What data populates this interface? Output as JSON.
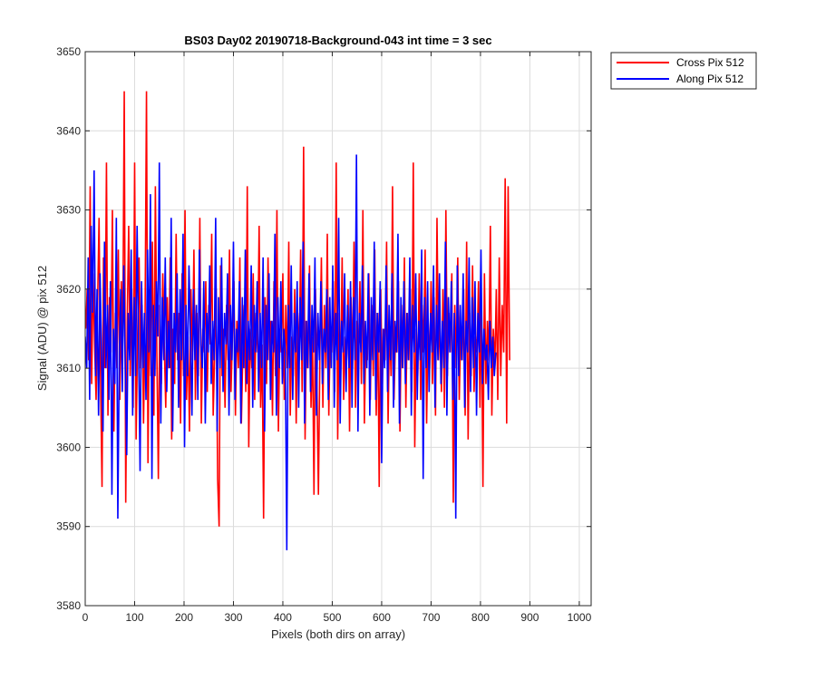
{
  "chart_data": {
    "type": "line",
    "title": "BS03 Day02 20190718-Background-043 int time = 3 sec",
    "xlabel": "Pixels (both dirs on array)",
    "ylabel": "Signal (ADU) @ pix 512",
    "xlim": [
      0,
      1024
    ],
    "ylim": [
      3580,
      3650
    ],
    "xticks": [
      0,
      100,
      200,
      300,
      400,
      500,
      600,
      700,
      800,
      900,
      1000
    ],
    "yticks": [
      3580,
      3590,
      3600,
      3610,
      3620,
      3630,
      3640,
      3650
    ],
    "grid": true,
    "legend_position": "outside-top-right",
    "series": [
      {
        "name": "Cross Pix 512",
        "color": "#ff0000",
        "x_start": 1,
        "x_step": 3,
        "values": [
          3615,
          3620,
          3611,
          3633,
          3608,
          3622,
          3613,
          3606,
          3618,
          3629,
          3609,
          3595,
          3624,
          3610,
          3636,
          3604,
          3619,
          3612,
          3630,
          3602,
          3617,
          3610,
          3625,
          3606,
          3621,
          3614,
          3645,
          3593,
          3616,
          3628,
          3609,
          3620,
          3605,
          3636,
          3601,
          3614,
          3624,
          3610,
          3618,
          3603,
          3615,
          3645,
          3598,
          3620,
          3609,
          3626,
          3604,
          3633,
          3612,
          3596,
          3618,
          3608,
          3622,
          3613,
          3605,
          3619,
          3610,
          3624,
          3601,
          3615,
          3608,
          3627,
          3611,
          3617,
          3603,
          3622,
          3609,
          3630,
          3606,
          3614,
          3602,
          3620,
          3611,
          3625,
          3606,
          3617,
          3609,
          3629,
          3603,
          3615,
          3612,
          3621,
          3607,
          3618,
          3613,
          3627,
          3604,
          3612,
          3620,
          3596,
          3590,
          3623,
          3609,
          3615,
          3605,
          3618,
          3611,
          3625,
          3607,
          3614,
          3621,
          3604,
          3616,
          3610,
          3624,
          3603,
          3612,
          3618,
          3607,
          3633,
          3600,
          3615,
          3610,
          3622,
          3606,
          3617,
          3612,
          3628,
          3605,
          3613,
          3591,
          3619,
          3608,
          3624,
          3611,
          3616,
          3604,
          3621,
          3609,
          3630,
          3602,
          3615,
          3612,
          3622,
          3606,
          3618,
          3610,
          3626,
          3604,
          3614,
          3609,
          3620,
          3603,
          3617,
          3611,
          3625,
          3607,
          3638,
          3601,
          3616,
          3610,
          3623,
          3605,
          3614,
          3594,
          3620,
          3608,
          3594,
          3612,
          3624,
          3605,
          3618,
          3610,
          3627,
          3604,
          3615,
          3612,
          3621,
          3607,
          3636,
          3601,
          3617,
          3609,
          3624,
          3606,
          3614,
          3611,
          3620,
          3602,
          3619,
          3610,
          3626,
          3605,
          3616,
          3612,
          3621,
          3608,
          3630,
          3603,
          3614,
          3611,
          3622,
          3606,
          3618,
          3609,
          3625,
          3604,
          3617,
          3595,
          3620,
          3608,
          3615,
          3611,
          3626,
          3603,
          3616,
          3609,
          3633,
          3606,
          3614,
          3612,
          3621,
          3602,
          3618,
          3610,
          3624,
          3605,
          3617,
          3611,
          3620,
          3607,
          3636,
          3600,
          3615,
          3609,
          3622,
          3606,
          3618,
          3612,
          3625,
          3603,
          3616,
          3610,
          3621,
          3608,
          3619,
          3604,
          3629,
          3611,
          3616,
          3607,
          3620,
          3605,
          3630,
          3609,
          3617,
          3612,
          3622,
          3593,
          3618,
          3610,
          3624,
          3606,
          3615,
          3611,
          3620,
          3604,
          3626,
          3601,
          3617,
          3609,
          3623,
          3607,
          3614,
          3612,
          3621,
          3605,
          3618,
          3595,
          3622,
          3608,
          3616,
          3611,
          3628,
          3604,
          3615,
          3610,
          3620,
          3606,
          3624,
          3609,
          3618,
          3612,
          3634,
          3603,
          3633,
          3611
        ]
      },
      {
        "name": "Along Pix 512",
        "color": "#0000ff",
        "x_start": 0,
        "x_step": 3,
        "values": [
          3614,
          3610,
          3624,
          3606,
          3628,
          3617,
          3635,
          3609,
          3620,
          3604,
          3622,
          3612,
          3602,
          3626,
          3610,
          3618,
          3606,
          3621,
          3594,
          3615,
          3608,
          3629,
          3591,
          3612,
          3620,
          3607,
          3623,
          3610,
          3599,
          3617,
          3611,
          3625,
          3604,
          3619,
          3609,
          3628,
          3613,
          3597,
          3621,
          3610,
          3617,
          3606,
          3625,
          3612,
          3632,
          3596,
          3618,
          3609,
          3621,
          3614,
          3636,
          3603,
          3619,
          3611,
          3624,
          3607,
          3616,
          3610,
          3629,
          3602,
          3617,
          3612,
          3622,
          3605,
          3620,
          3611,
          3627,
          3600,
          3618,
          3609,
          3623,
          3614,
          3604,
          3620,
          3611,
          3618,
          3606,
          3625,
          3613,
          3610,
          3621,
          3603,
          3617,
          3612,
          3623,
          3608,
          3616,
          3611,
          3629,
          3602,
          3619,
          3610,
          3624,
          3607,
          3617,
          3613,
          3622,
          3604,
          3618,
          3611,
          3626,
          3606,
          3615,
          3612,
          3621,
          3603,
          3619,
          3610,
          3625,
          3608,
          3616,
          3611,
          3623,
          3605,
          3618,
          3612,
          3621,
          3607,
          3617,
          3610,
          3624,
          3602,
          3618,
          3611,
          3622,
          3606,
          3616,
          3612,
          3627,
          3604,
          3619,
          3610,
          3621,
          3608,
          3615,
          3612,
          3587,
          3618,
          3610,
          3623,
          3606,
          3617,
          3612,
          3621,
          3605,
          3619,
          3611,
          3626,
          3603,
          3616,
          3610,
          3622,
          3607,
          3618,
          3612,
          3624,
          3604,
          3617,
          3611,
          3621,
          3608,
          3615,
          3612,
          3620,
          3606,
          3619,
          3610,
          3623,
          3605,
          3617,
          3611,
          3629,
          3603,
          3616,
          3612,
          3622,
          3607,
          3618,
          3610,
          3621,
          3605,
          3619,
          3611,
          3637,
          3602,
          3617,
          3612,
          3623,
          3608,
          3616,
          3610,
          3622,
          3604,
          3619,
          3611,
          3626,
          3606,
          3617,
          3612,
          3621,
          3598,
          3615,
          3610,
          3623,
          3607,
          3618,
          3611,
          3622,
          3605,
          3616,
          3612,
          3627,
          3603,
          3619,
          3610,
          3621,
          3608,
          3617,
          3611,
          3624,
          3604,
          3618,
          3612,
          3622,
          3606,
          3616,
          3611,
          3625,
          3596,
          3619,
          3610,
          3621,
          3607,
          3617,
          3612,
          3623,
          3605,
          3618,
          3611,
          3622,
          3608,
          3616,
          3610,
          3626,
          3604,
          3619,
          3612,
          3621,
          3606,
          3617,
          3591,
          3623,
          3609,
          3618,
          3611,
          3622,
          3605,
          3616,
          3612,
          3624,
          3607,
          3619,
          3610,
          3621,
          3604,
          3617,
          3612,
          3625,
          3608,
          3615,
          3611,
          3613,
          3606,
          3616,
          3610,
          3614,
          3609,
          3612
        ]
      }
    ]
  }
}
